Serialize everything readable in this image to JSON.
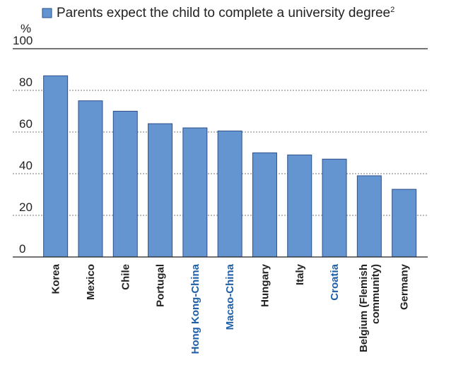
{
  "chart_data": {
    "type": "bar",
    "ylabel": "%",
    "ylim": [
      0,
      100
    ],
    "yticks": [
      0,
      20,
      40,
      60,
      80,
      100
    ],
    "grid": "dotted-horizontal",
    "legend": {
      "placement": "top-left",
      "label": "Parents expect the child to complete a university degree",
      "superscript": "2"
    },
    "colors": {
      "bar": "#6495d1",
      "bar_edge": "#2d4f8a",
      "label_default": "#222222",
      "label_partner": "#1f5fa8"
    },
    "categories": [
      {
        "label": [
          "Korea"
        ],
        "partner": false
      },
      {
        "label": [
          "Mexico"
        ],
        "partner": false
      },
      {
        "label": [
          "Chile"
        ],
        "partner": false
      },
      {
        "label": [
          "Portugal"
        ],
        "partner": false
      },
      {
        "label": [
          "Hong Kong-China"
        ],
        "partner": true
      },
      {
        "label": [
          "Macao-China"
        ],
        "partner": true
      },
      {
        "label": [
          "Hungary"
        ],
        "partner": false
      },
      {
        "label": [
          "Italy"
        ],
        "partner": false
      },
      {
        "label": [
          "Croatia"
        ],
        "partner": true
      },
      {
        "label": [
          "Belgium (Flemish",
          "community)"
        ],
        "partner": false
      },
      {
        "label": [
          "Germany"
        ],
        "partner": false
      }
    ],
    "values": [
      87,
      75,
      70,
      64,
      62,
      60.5,
      50,
      49,
      47,
      39,
      32.5
    ]
  }
}
